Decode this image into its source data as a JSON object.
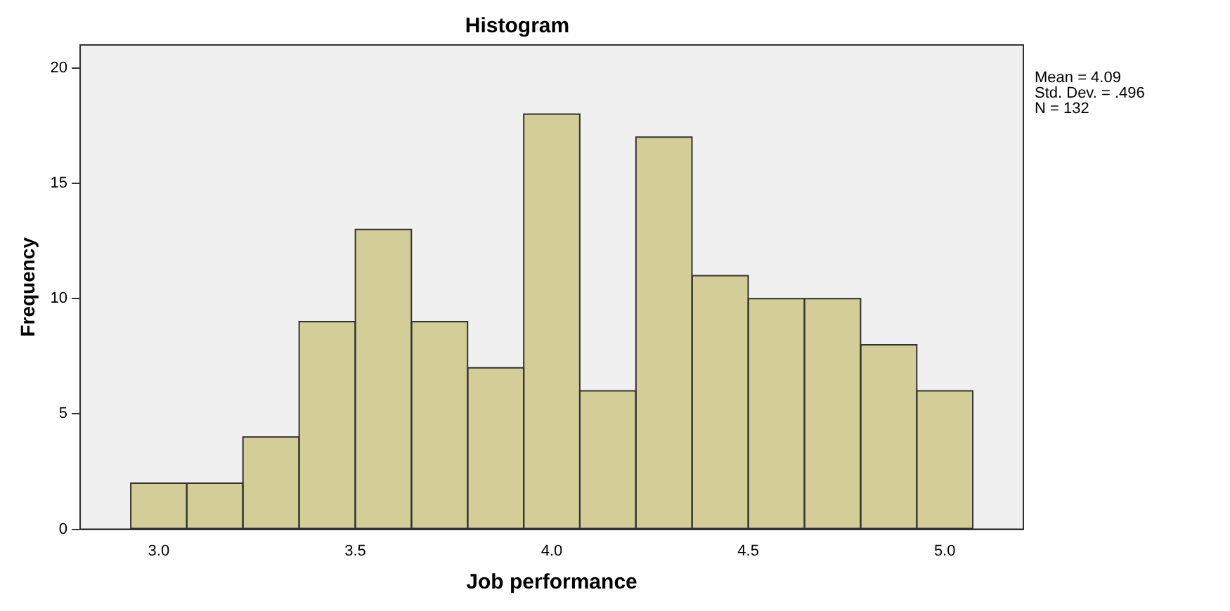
{
  "chart_data": {
    "type": "histogram",
    "title": "Histogram",
    "xlabel": "Job performance",
    "ylabel": "Frequency",
    "bins": [
      2.929,
      3.071,
      3.214,
      3.357,
      3.5,
      3.643,
      3.786,
      3.929,
      4.071,
      4.214,
      4.357,
      4.5,
      4.643,
      4.786,
      4.929,
      5.071
    ],
    "values": [
      2,
      2,
      4,
      9,
      13,
      9,
      7,
      18,
      6,
      17,
      11,
      10,
      10,
      8,
      6
    ],
    "color": "#d3ce97",
    "xlim": [
      2.8,
      5.2
    ],
    "xticks": [
      {
        "value": 3,
        "label": "3.0"
      },
      {
        "value": 3.5,
        "label": "3.5"
      },
      {
        "value": 4,
        "label": "4.0"
      },
      {
        "value": 4.5,
        "label": "4.5"
      },
      {
        "value": 5,
        "label": "5.0"
      }
    ],
    "ylim": [
      0,
      21
    ],
    "yticks": [
      0,
      5,
      10,
      15,
      20
    ],
    "grid": false,
    "legend": false,
    "annotations": [
      "Mean = 4.09",
      "Std. Dev. = .496",
      "N = 132"
    ]
  }
}
